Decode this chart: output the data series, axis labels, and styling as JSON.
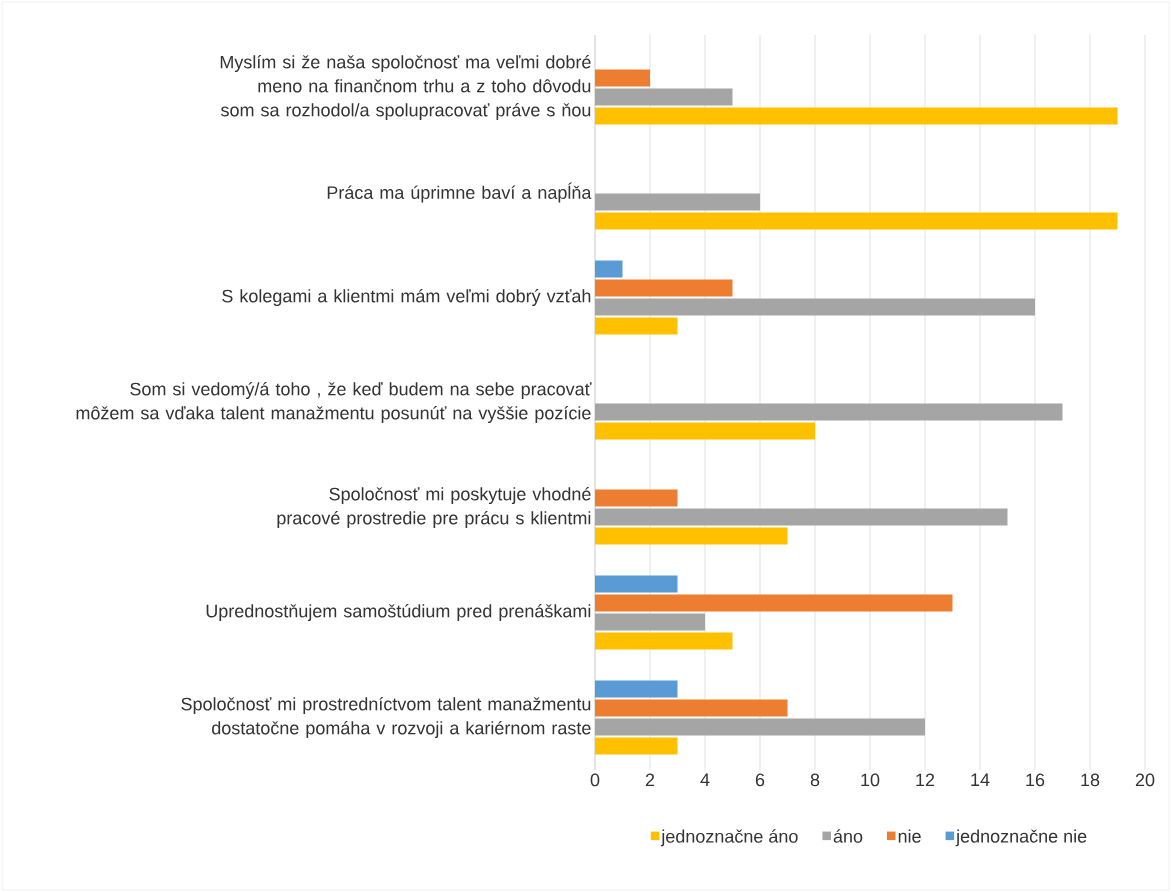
{
  "chart_data": {
    "type": "bar",
    "orientation": "horizontal",
    "categories": [
      "Myslím si že naša spoločnosť ma veľmi dobré meno na finančnom trhu a z toho dôvodu som sa rozhodol/a spolupracovať práve s ňou",
      "Práca ma úprimne baví a napĺňa",
      "S kolegami a klientmi mám veľmi dobrý vzťah",
      "Som si vedomý/á toho , že keď budem na sebe pracovať môžem sa vďaka talent manažmentu posunúť na vyššie pozície",
      "Spoločnosť mi poskytuje vhodné pracové prostredie pre prácu s klientmi",
      "Uprednostňujem samoštúdium pred prenáškami",
      "Spoločnosť mi prostredníctvom talent manažmentu dostatočne pomáha v rozvoji a kariérnom raste"
    ],
    "series": [
      {
        "name": "jednoznačne áno",
        "color": "#ffc000",
        "values": [
          19,
          19,
          3,
          8,
          7,
          5,
          3
        ]
      },
      {
        "name": "áno",
        "color": "#a5a5a5",
        "values": [
          5,
          6,
          16,
          17,
          15,
          4,
          12
        ]
      },
      {
        "name": "nie",
        "color": "#ed7d31",
        "values": [
          2,
          0,
          5,
          0,
          3,
          13,
          7
        ]
      },
      {
        "name": "jednoznačne nie",
        "color": "#5b9bd5",
        "values": [
          0,
          0,
          1,
          0,
          0,
          3,
          3
        ]
      }
    ],
    "xlim": [
      0,
      20
    ],
    "xticks": [
      0,
      2,
      4,
      6,
      8,
      10,
      12,
      14,
      16,
      18,
      20
    ],
    "grid": "x",
    "legend": "bottom"
  }
}
